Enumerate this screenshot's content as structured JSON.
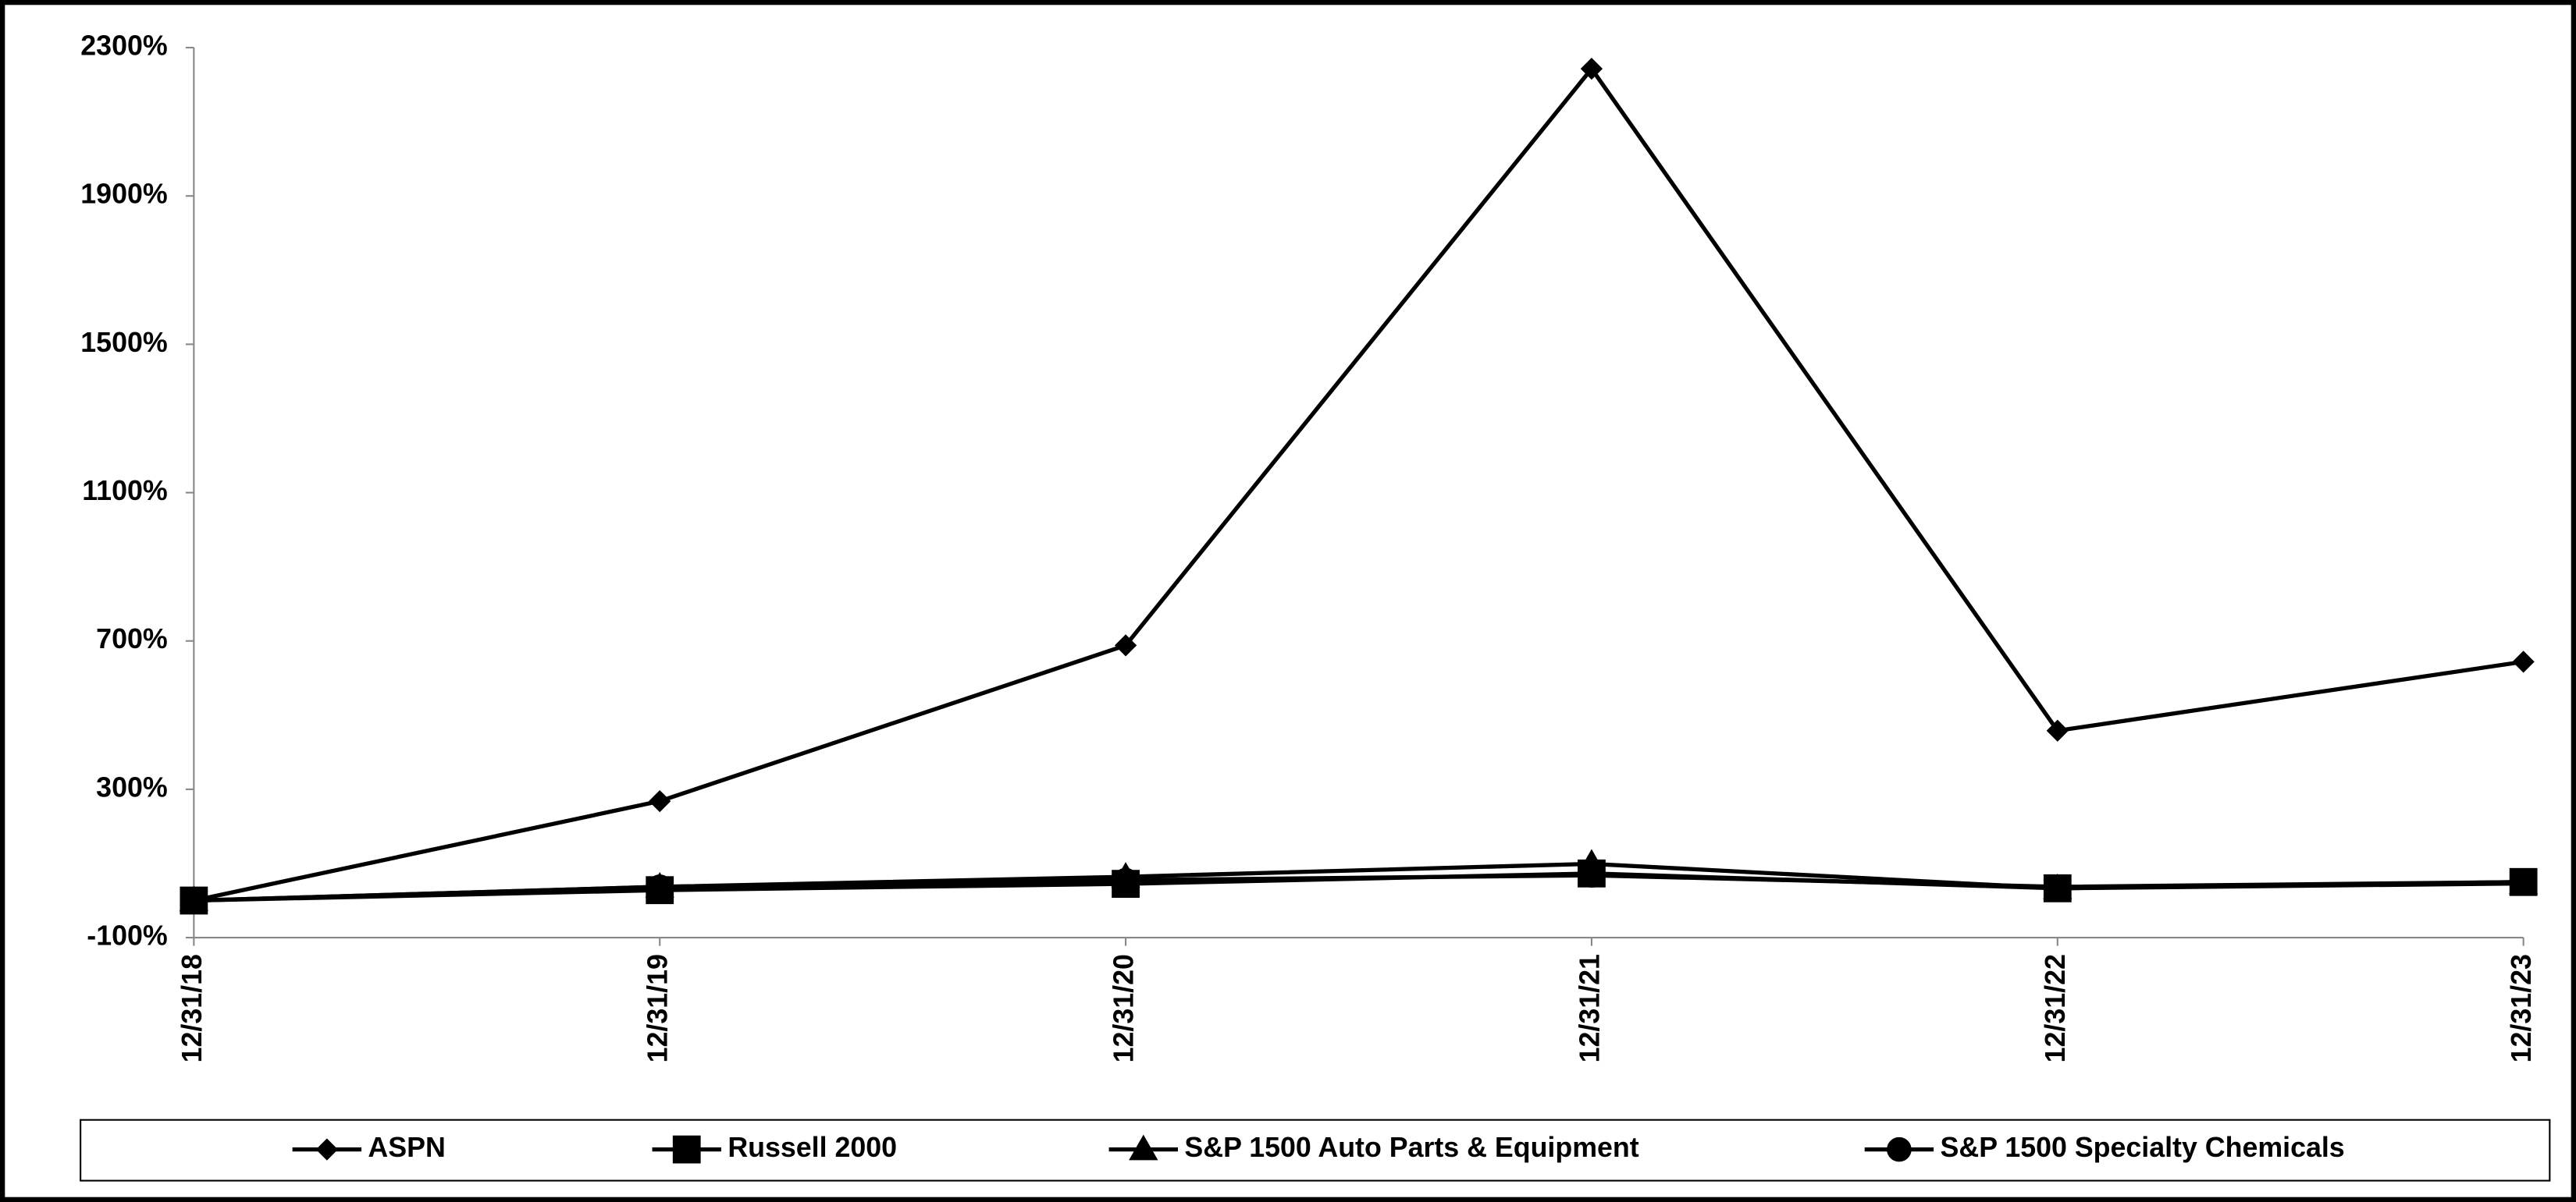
{
  "chart_data": {
    "type": "line",
    "x": [
      "12/31/18",
      "12/31/19",
      "12/31/20",
      "12/31/21",
      "12/31/22",
      "12/31/23"
    ],
    "series": [
      {
        "name": "ASPN",
        "color": "#000000",
        "marker": "diamond",
        "values": [
          0,
          268,
          688,
          2243,
          458,
          644
        ]
      },
      {
        "name": "Russell 2000",
        "color": "#000000",
        "marker": "square",
        "values": [
          0,
          28,
          45,
          73,
          33,
          50
        ]
      },
      {
        "name": "S&P 1500 Auto Parts & Equipment",
        "color": "#000000",
        "marker": "triangle",
        "values": [
          0,
          37,
          64,
          99,
          33,
          46
        ]
      },
      {
        "name": "S&P 1500 Specialty Chemicals",
        "color": "#000000",
        "marker": "circle",
        "values": [
          0,
          37,
          55,
          68,
          37,
          50
        ]
      }
    ],
    "ylim": [
      -100,
      2300
    ],
    "yticks": [
      {
        "value": -100,
        "label": "-100%"
      },
      {
        "value": 300,
        "label": "300%"
      },
      {
        "value": 700,
        "label": "700%"
      },
      {
        "value": 1100,
        "label": "1100%"
      },
      {
        "value": 1500,
        "label": "1500%"
      },
      {
        "value": 1900,
        "label": "1900%"
      },
      {
        "value": 2300,
        "label": "2300%"
      }
    ],
    "legend": "bottom"
  }
}
